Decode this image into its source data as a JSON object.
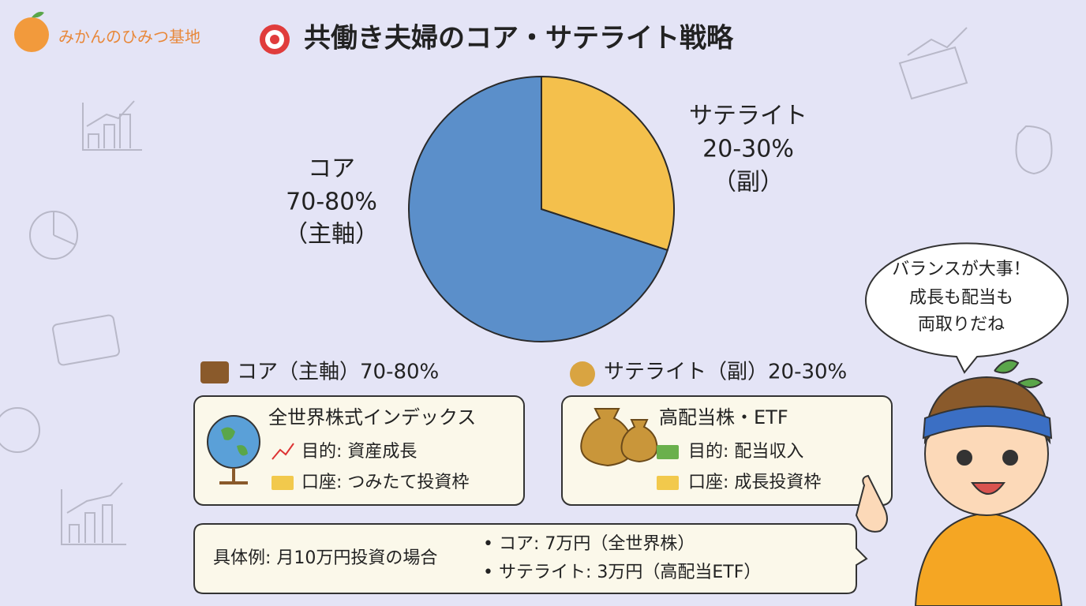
{
  "brand": "みかんのひみつ基地",
  "title": "共働き夫婦のコア・サテライト戦略",
  "chart_data": {
    "type": "pie",
    "categories": [
      "コア",
      "サテライト"
    ],
    "values": [
      70,
      30
    ],
    "ranges": [
      "70-80%",
      "20-30%"
    ],
    "roles": [
      "（主軸）",
      "（副）"
    ],
    "colors": [
      "#5b8fca",
      "#f4c04c"
    ]
  },
  "cards": [
    {
      "heading": "コア（主軸）70-80%",
      "name": "全世界株式インデックス",
      "purpose": "目的: 資産成長",
      "account": "口座: つみたて投資枠"
    },
    {
      "heading": "サテライト（副）20-30%",
      "name": "高配当株・ETF",
      "purpose": "目的: 配当収入",
      "account": "口座: 成長投資枠"
    }
  ],
  "example": {
    "label": "具体例: 月10万円投資の場合",
    "items": [
      "• コア: 7万円（全世界株）",
      "• サテライト: 3万円（高配当ETF）"
    ]
  },
  "speech": [
    "バランスが大事！",
    "成長も配当も",
    "両取りだね"
  ]
}
